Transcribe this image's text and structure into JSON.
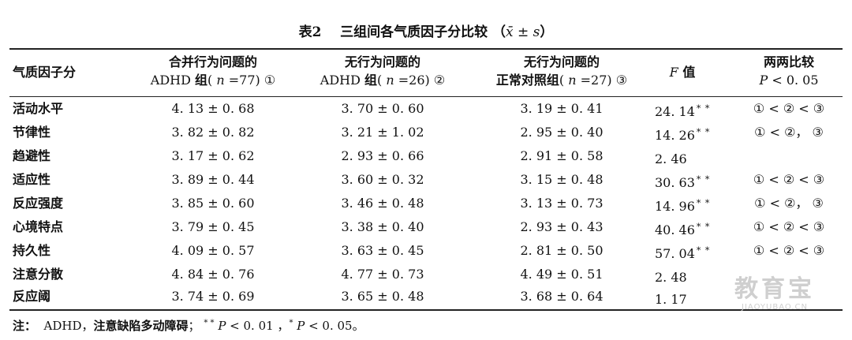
{
  "caption": {
    "prefix": "表",
    "number": "2",
    "title": "三组间各气质因子分比较",
    "stat_open": "（",
    "stat_symbol": "x̄ ± s",
    "stat_close": "）"
  },
  "headers": {
    "factor": "气质因子分",
    "g1_line1": "合并行为问题的",
    "g1_line2_a": "ADHD ",
    "g1_line2_cn": "组",
    "g1_line2_b": "( ",
    "g1_line2_n": "n",
    "g1_line2_c": " =77) ①",
    "g2_line1": "无行为问题的",
    "g2_line2_a": "ADHD ",
    "g2_line2_cn": "组",
    "g2_line2_b": "( ",
    "g2_line2_n": "n",
    "g2_line2_c": " =26) ②",
    "g3_line1": "无行为问题的",
    "g3_line2_cn": "正常对照组",
    "g3_line2_b": "( ",
    "g3_line2_n": "n",
    "g3_line2_c": " =27) ③",
    "f_symbol": "F",
    "f_word": " 值",
    "cmp_line1": "两两比较",
    "cmp_line2_p": "P",
    "cmp_line2_rest": " < 0. 05"
  },
  "rows": [
    {
      "factor": "活动水平",
      "g1": "4. 13 ± 0. 68",
      "g2": "3. 70 ± 0. 60",
      "g3": "3. 19 ± 0. 41",
      "f": "24. 14",
      "sig": "* *",
      "cmp": "① < ② < ③"
    },
    {
      "factor": "节律性",
      "g1": "3. 82 ± 0. 82",
      "g2": "3. 21 ± 1. 02",
      "g3": "2. 95 ± 0. 40",
      "f": "14. 26",
      "sig": "* *",
      "cmp": "① < ②， ③"
    },
    {
      "factor": "趋避性",
      "g1": "3. 17 ± 0. 62",
      "g2": "2. 93 ± 0. 66",
      "g3": "2. 91 ± 0. 58",
      "f": "2. 46",
      "sig": "",
      "cmp": ""
    },
    {
      "factor": "适应性",
      "g1": "3. 89 ± 0. 44",
      "g2": "3. 60 ± 0. 32",
      "g3": "3. 15 ± 0. 48",
      "f": "30. 63",
      "sig": "* *",
      "cmp": "① < ② < ③"
    },
    {
      "factor": "反应强度",
      "g1": "3. 85 ± 0. 60",
      "g2": "3. 46 ± 0. 48",
      "g3": "3. 13 ± 0. 73",
      "f": "14. 96",
      "sig": "* *",
      "cmp": "① < ②， ③"
    },
    {
      "factor": "心境特点",
      "g1": "3. 79 ± 0. 45",
      "g2": "3. 38 ± 0. 40",
      "g3": "2. 93 ± 0. 43",
      "f": "40. 46",
      "sig": "* *",
      "cmp": "① < ② < ③"
    },
    {
      "factor": "持久性",
      "g1": "4. 09 ± 0. 57",
      "g2": "3. 63 ± 0. 45",
      "g3": "2. 81 ± 0. 50",
      "f": "57. 04",
      "sig": "* *",
      "cmp": "① < ② < ③"
    },
    {
      "factor": "注意分散",
      "g1": "4. 84 ± 0. 76",
      "g2": "4. 77 ± 0. 73",
      "g3": "4. 49 ± 0. 51",
      "f": "2. 48",
      "sig": "",
      "cmp": ""
    },
    {
      "factor": "反应阈",
      "g1": "3. 74 ± 0. 69",
      "g2": "3. 65 ± 0. 48",
      "g3": "3. 68 ± 0. 64",
      "f": "1. 17",
      "sig": "",
      "cmp": ""
    }
  ],
  "note": {
    "label": "注：",
    "abbr": "  ADHD，",
    "abbr_cn": "注意缺陷多动障碍",
    "sep1": "；",
    "sig2": "* *",
    "p1_sym": "P",
    "p1_rest": " < 0. 01 ，",
    "sig1": "*",
    "p2_sym": "P",
    "p2_rest": " < 0. 05。"
  },
  "watermark": {
    "brand": "教育宝",
    "domain": "JIAOYUBAO.CN"
  }
}
